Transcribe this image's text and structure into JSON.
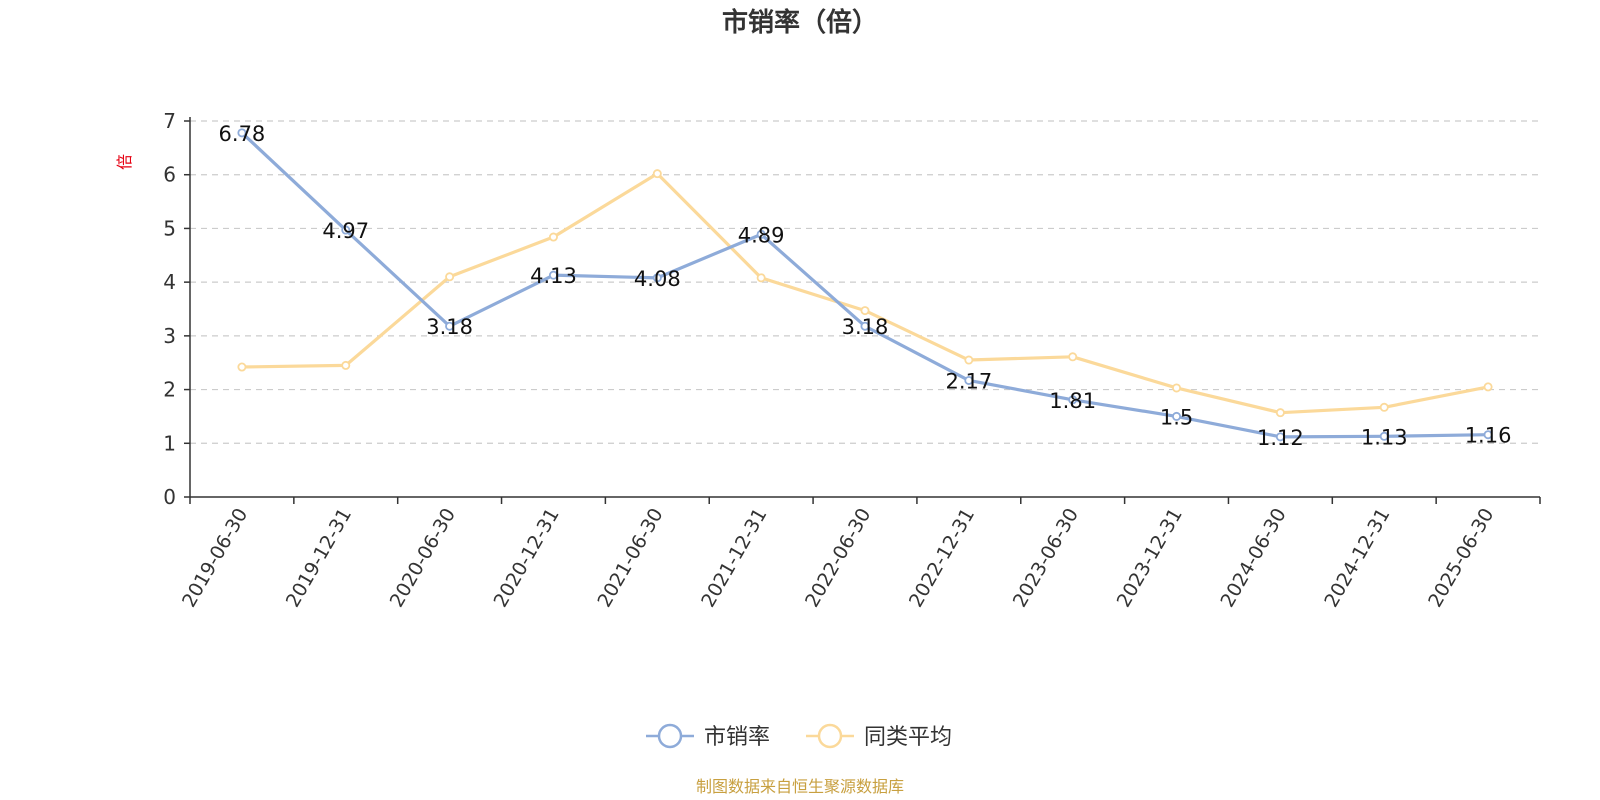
{
  "chart_data": {
    "type": "line",
    "title": "市销率（倍）",
    "ylabel": "倍",
    "xlabel": "",
    "ylim": [
      0,
      7
    ],
    "yticks": [
      0,
      1,
      2,
      3,
      4,
      5,
      6,
      7
    ],
    "grid": true,
    "legend_position": "bottom",
    "categories": [
      "2019-06-30",
      "2019-12-31",
      "2020-06-30",
      "2020-12-31",
      "2021-06-30",
      "2021-12-31",
      "2022-06-30",
      "2022-12-31",
      "2023-06-30",
      "2023-12-31",
      "2024-06-30",
      "2024-12-31",
      "2025-06-30"
    ],
    "series": [
      {
        "name": "市销率",
        "color": "#8eabd9",
        "values": [
          6.78,
          4.97,
          3.18,
          4.13,
          4.08,
          4.89,
          3.18,
          2.17,
          1.81,
          1.5,
          1.12,
          1.13,
          1.16
        ],
        "labels": [
          "6.78",
          "4.97",
          "3.18",
          "4.13",
          "4.08",
          "4.89",
          "3.18",
          "2.17",
          "1.81",
          "1.5",
          "1.12",
          "1.13",
          "1.16"
        ]
      },
      {
        "name": "同类平均",
        "color": "#fbd99a",
        "values": [
          2.42,
          2.45,
          4.1,
          4.84,
          6.02,
          4.08,
          3.47,
          2.55,
          2.61,
          2.03,
          1.57,
          1.67,
          2.05
        ]
      }
    ],
    "source": "制图数据来自恒生聚源数据库",
    "colors": {
      "unit": "#e60012",
      "source": "#c8a040",
      "axis": "#333333",
      "grid": "#cccccc"
    }
  }
}
